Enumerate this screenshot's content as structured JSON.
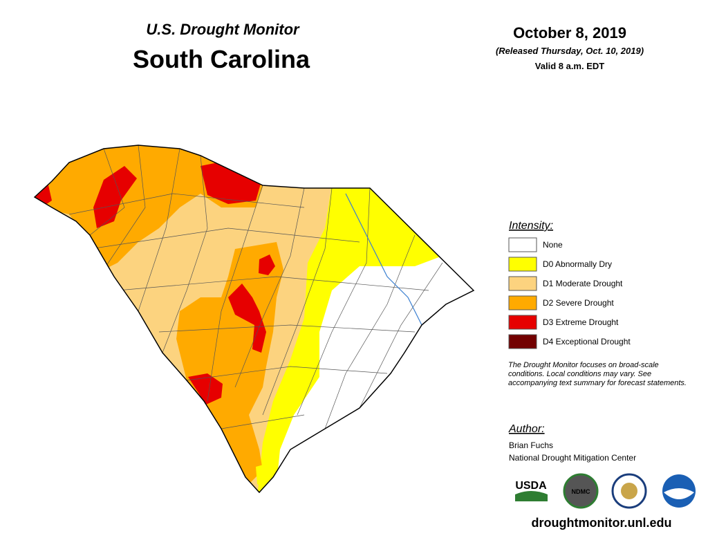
{
  "header": {
    "series": "U.S. Drought Monitor",
    "title": "South Carolina",
    "date": "October 8, 2019",
    "released": "(Released Thursday, Oct. 10, 2019)",
    "valid": "Valid 8 a.m. EDT"
  },
  "legend": {
    "title": "Intensity:",
    "items": [
      {
        "label": "None",
        "color": "#ffffff"
      },
      {
        "label": "D0 Abnormally Dry",
        "color": "#ffff00"
      },
      {
        "label": "D1 Moderate Drought",
        "color": "#fcd37f"
      },
      {
        "label": "D2 Severe Drought",
        "color": "#ffaa00"
      },
      {
        "label": "D3 Extreme Drought",
        "color": "#e60000"
      },
      {
        "label": "D4 Exceptional Drought",
        "color": "#730000"
      }
    ]
  },
  "note": "The Drought Monitor focuses on broad-scale conditions. Local conditions may vary. See accompanying text summary for forecast statements.",
  "author": {
    "label": "Author:",
    "name": "Brian Fuchs",
    "organization": "National Drought Mitigation Center"
  },
  "logos": [
    "USDA",
    "NDMC"
  ],
  "url": "droughtmonitor.unl.edu"
}
